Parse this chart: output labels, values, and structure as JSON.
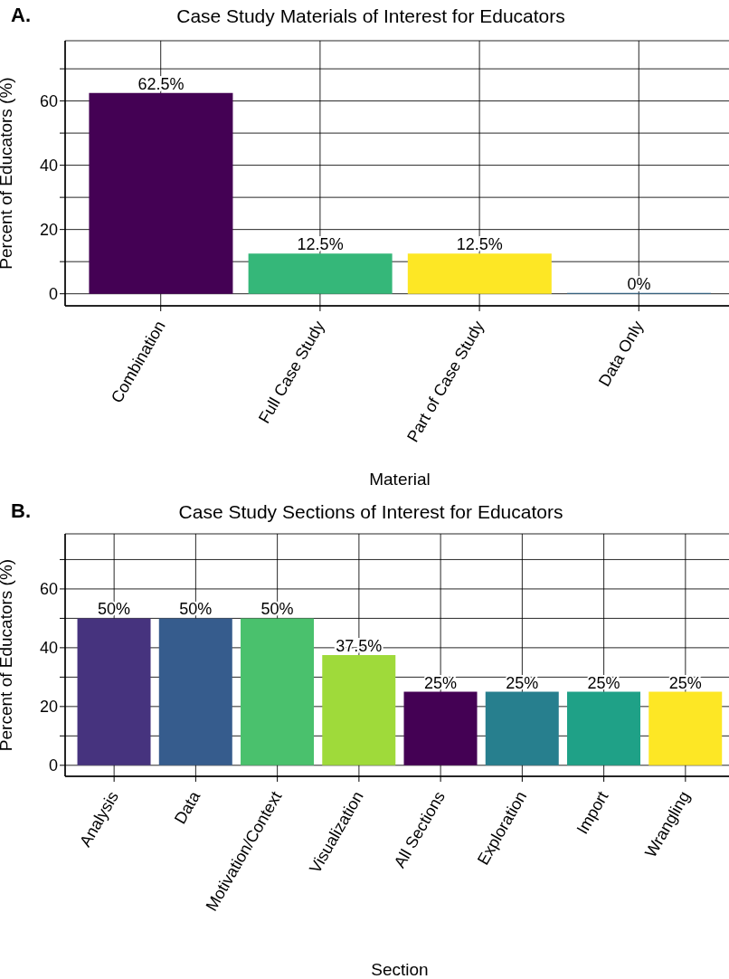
{
  "chart_data": [
    {
      "type": "bar",
      "title": "Case Study Materials of Interest for Educators",
      "xlabel": "Material",
      "ylabel": "Percent of Educators (%)",
      "annotations": [
        "A."
      ],
      "categories": [
        "Combination",
        "Full Case Study",
        "Part of Case Study",
        "Data Only"
      ],
      "values": [
        62.5,
        12.5,
        12.5,
        0
      ],
      "colors": [
        "#440154",
        "#35b779",
        "#fde725",
        "#31688e"
      ],
      "value_labels": [
        "62.5%",
        "12.5%",
        "12.5%",
        "0%"
      ],
      "ylim": [
        -3.75,
        78.75
      ],
      "yticks": [
        0,
        {
          "value": 10,
          "label": null
        },
        20,
        {
          "value": 30,
          "label": null
        },
        40,
        {
          "value": 50,
          "label": null
        },
        60,
        {
          "value": 70,
          "label": null
        }
      ],
      "grid": true,
      "legend": false
    },
    {
      "type": "bar",
      "title": "Case Study Sections of Interest for Educators",
      "xlabel": "Section",
      "ylabel": "Percent of Educators (%)",
      "annotations": [
        "B."
      ],
      "categories": [
        "Analysis",
        "Data",
        "Motivation/Context",
        "Visualization",
        "All Sections",
        "Exploration",
        "Import",
        "Wrangling"
      ],
      "values": [
        50,
        50,
        50,
        37.5,
        25,
        25,
        25,
        25
      ],
      "colors": [
        "#46337e",
        "#365c8d",
        "#4ac16d",
        "#9fda3a",
        "#440154",
        "#277f8e",
        "#1fa187",
        "#fde725"
      ],
      "value_labels": [
        "50%",
        "50%",
        "50%",
        "37.5%",
        "25%",
        "25%",
        "25%",
        "25%"
      ],
      "ylim": [
        -3.75,
        78.75
      ],
      "yticks": [
        0,
        {
          "value": 10,
          "label": null
        },
        20,
        {
          "value": 30,
          "label": null
        },
        40,
        {
          "value": 50,
          "label": null
        },
        60,
        {
          "value": 70,
          "label": null
        }
      ],
      "grid": true,
      "legend": false
    }
  ]
}
